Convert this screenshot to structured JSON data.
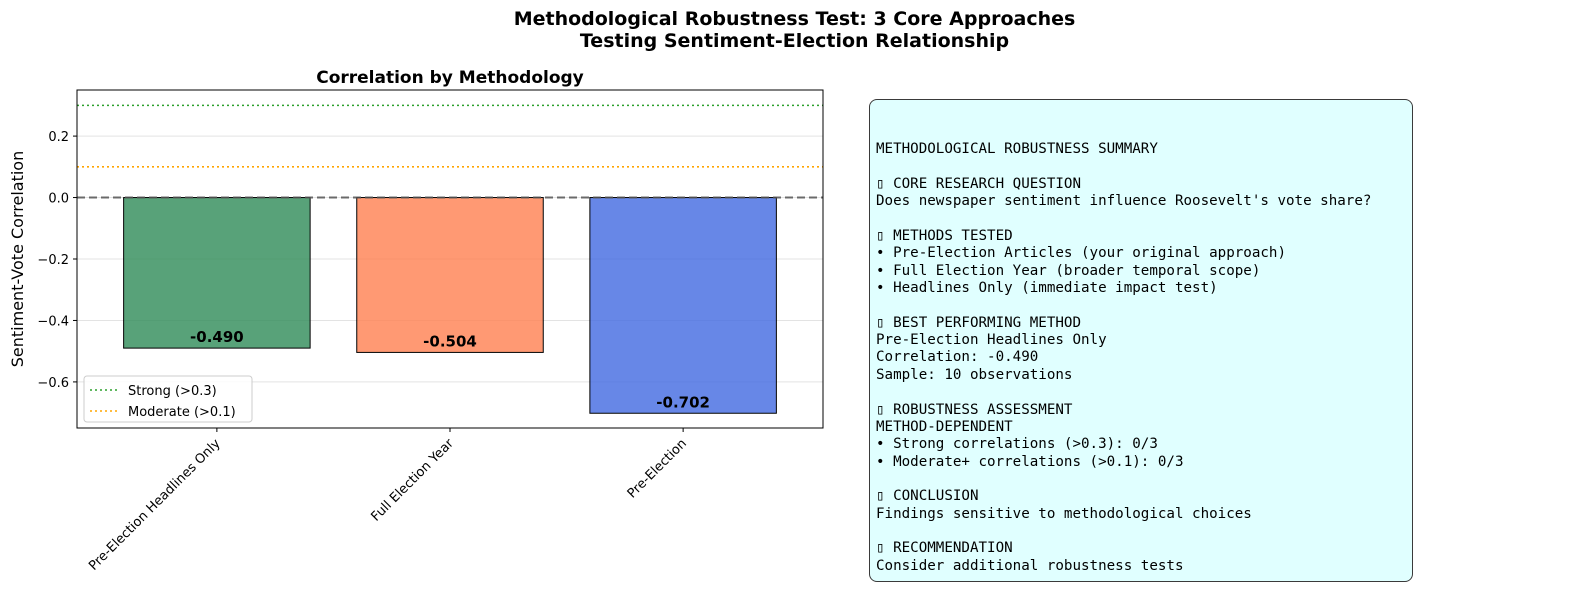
{
  "figure": {
    "title_line1": "Methodological Robustness Test: 3 Core Approaches",
    "title_line2": "Testing Sentiment-Election Relationship"
  },
  "chart_data": {
    "type": "bar",
    "title": "Correlation by Methodology",
    "xlabel": "",
    "ylabel": "Sentiment-Vote Correlation",
    "categories": [
      "Pre-Election Headlines Only",
      "Full Election Year",
      "Pre-Election"
    ],
    "values": [
      -0.49,
      -0.504,
      -0.702
    ],
    "value_labels": [
      "-0.490",
      "-0.504",
      "-0.702"
    ],
    "bar_colors": [
      "#2e8b57",
      "#ff7f50",
      "#4169e1"
    ],
    "ylim": [
      -0.75,
      0.35
    ],
    "yticks": [
      0.2,
      0.0,
      -0.2,
      -0.4,
      -0.6
    ],
    "ytick_labels": [
      "0.2",
      "0.0",
      "−0.2",
      "−0.4",
      "−0.6"
    ],
    "grid": "y",
    "reference_lines": [
      {
        "name": "Strong (>0.3)",
        "y": 0.3,
        "color": "#2ca02c",
        "style": "dotted"
      },
      {
        "name": "Moderate (>0.1)",
        "y": 0.1,
        "color": "#ffa500",
        "style": "dotted"
      },
      {
        "name": "",
        "y": 0.0,
        "color": "#555555",
        "style": "dashed"
      }
    ],
    "legend": {
      "placement": "lower-left",
      "entries": [
        "Strong (>0.3)",
        "Moderate (>0.1)"
      ]
    }
  },
  "summary": {
    "lines": [
      "",
      "METHODOLOGICAL ROBUSTNESS SUMMARY",
      "",
      "▯ CORE RESEARCH QUESTION",
      "Does newspaper sentiment influence Roosevelt's vote share?",
      "",
      "▯ METHODS TESTED",
      "• Pre-Election Articles (your original approach)",
      "• Full Election Year (broader temporal scope)",
      "• Headlines Only (immediate impact test)",
      "",
      "▯ BEST PERFORMING METHOD",
      "Pre-Election Headlines Only",
      "Correlation: -0.490",
      "Sample: 10 observations",
      "",
      "▯ ROBUSTNESS ASSESSMENT",
      "METHOD-DEPENDENT",
      "• Strong correlations (>0.3): 0/3",
      "• Moderate+ correlations (>0.1): 0/3",
      "",
      "▯ CONCLUSION",
      "Findings sensitive to methodological choices",
      "",
      "▯ RECOMMENDATION",
      "Consider additional robustness tests"
    ]
  }
}
